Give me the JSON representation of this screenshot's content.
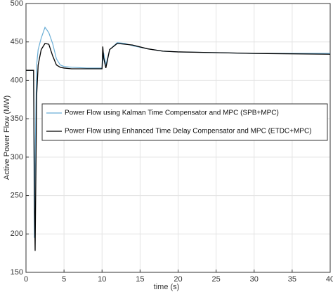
{
  "chart_data": {
    "type": "line",
    "xlabel": "time (s)",
    "ylabel": "Active Power Flow (MW)",
    "x": [
      0,
      1.0,
      1.1,
      1.2,
      1.4,
      1.6,
      2.0,
      2.5,
      3.0,
      3.5,
      4.0,
      4.5,
      5,
      6,
      8,
      10,
      10.1,
      10.2,
      10.5,
      11,
      12,
      13,
      14,
      16,
      18,
      20,
      25,
      30,
      40
    ],
    "series": [
      {
        "name": "Power Flow using Kalman Time Compensator and MPC (SPB+MPC)",
        "color": "#6aaed6",
        "values": [
          413,
          413,
          195,
          300,
          420,
          440,
          455,
          469,
          462,
          448,
          428,
          420,
          418,
          417,
          416,
          416,
          425,
          436,
          420,
          440,
          449,
          448,
          445,
          441,
          438,
          437,
          436,
          435,
          435
        ]
      },
      {
        "name": "Power Flow using Enhanced Time Delay Compensator and MPC (ETDC+MPC)",
        "color": "#000000",
        "values": [
          413,
          413,
          250,
          178,
          380,
          420,
          440,
          448,
          447,
          432,
          420,
          417,
          416,
          415,
          415,
          415,
          444,
          430,
          416,
          440,
          448,
          447,
          446,
          441,
          438,
          437,
          436,
          435,
          434
        ]
      }
    ],
    "xlim": [
      0,
      40
    ],
    "xticks": [
      0,
      5,
      10,
      15,
      20,
      25,
      30,
      35,
      40
    ],
    "ylim": [
      150,
      500
    ],
    "yticks": [
      150,
      200,
      250,
      300,
      350,
      400,
      450,
      500
    ],
    "grid": true,
    "legend": "center"
  }
}
